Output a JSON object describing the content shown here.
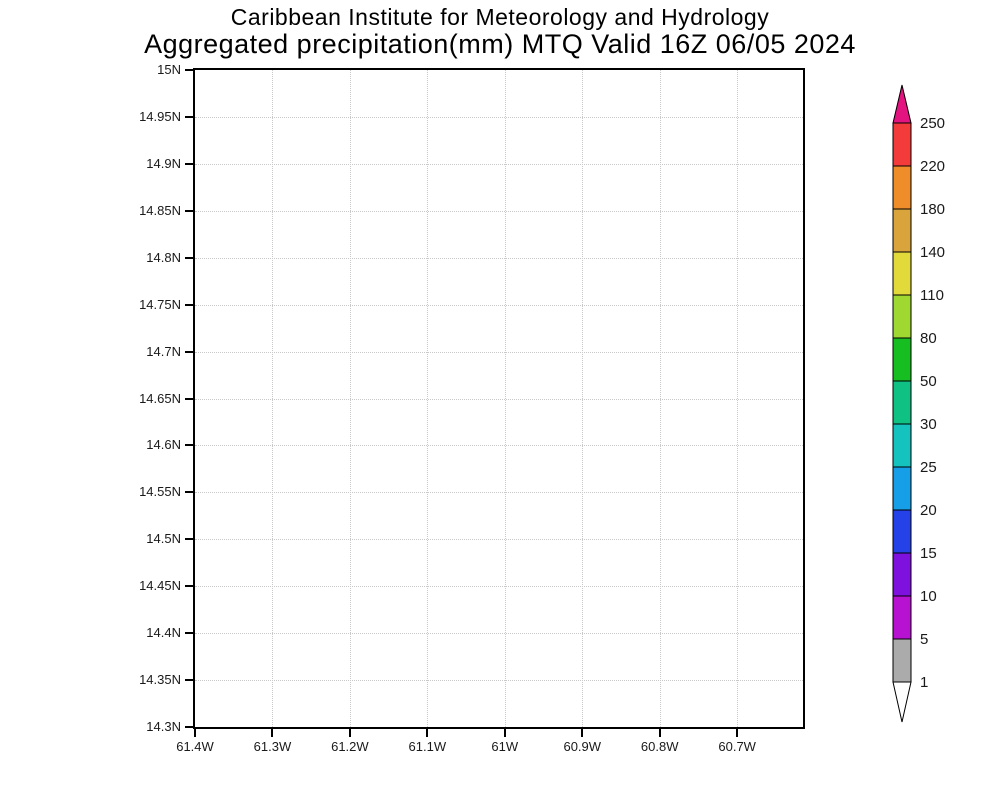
{
  "title": {
    "line1": "Caribbean Institute for Meteorology and Hydrology",
    "line2": "Aggregated precipitation(mm) MTQ Valid 16Z 06/05 2024"
  },
  "chart_data": {
    "type": "heatmap",
    "title": "Caribbean Institute for Meteorology and Hydrology",
    "subtitle": "Aggregated precipitation(mm) MTQ Valid 16Z 06/05 2024",
    "variable": "Aggregated precipitation",
    "units": "mm",
    "region": "MTQ",
    "valid_time": "16Z 06/05 2024",
    "field": "empty - no precipitation values at or above 1 mm plotted on the map",
    "grid": {
      "style": "dotted",
      "color": "#c8c8c8",
      "visible": true
    },
    "x_axis": {
      "unit": "degrees west longitude",
      "left_value": 61.4,
      "right_value": 60.615,
      "ticks": [
        {
          "label": "61.4W",
          "lon": 61.4
        },
        {
          "label": "61.3W",
          "lon": 61.3
        },
        {
          "label": "61.2W",
          "lon": 61.2
        },
        {
          "label": "61.1W",
          "lon": 61.1
        },
        {
          "label": "61W",
          "lon": 61.0
        },
        {
          "label": "60.9W",
          "lon": 60.9
        },
        {
          "label": "60.8W",
          "lon": 60.8
        },
        {
          "label": "60.7W",
          "lon": 60.7
        }
      ]
    },
    "y_axis": {
      "unit": "degrees north latitude",
      "top_value": 15.0,
      "bottom_value": 14.3,
      "ticks": [
        {
          "label": "15N",
          "lat": 15.0
        },
        {
          "label": "14.95N",
          "lat": 14.95
        },
        {
          "label": "14.9N",
          "lat": 14.9
        },
        {
          "label": "14.85N",
          "lat": 14.85
        },
        {
          "label": "14.8N",
          "lat": 14.8
        },
        {
          "label": "14.75N",
          "lat": 14.75
        },
        {
          "label": "14.7N",
          "lat": 14.7
        },
        {
          "label": "14.65N",
          "lat": 14.65
        },
        {
          "label": "14.6N",
          "lat": 14.6
        },
        {
          "label": "14.55N",
          "lat": 14.55
        },
        {
          "label": "14.5N",
          "lat": 14.5
        },
        {
          "label": "14.45N",
          "lat": 14.45
        },
        {
          "label": "14.4N",
          "lat": 14.4
        },
        {
          "label": "14.35N",
          "lat": 14.35
        },
        {
          "label": "14.3N",
          "lat": 14.3
        }
      ]
    },
    "colorbar": {
      "orientation": "vertical",
      "position": "right",
      "levels": [
        1,
        5,
        10,
        15,
        20,
        25,
        30,
        50,
        80,
        110,
        140,
        180,
        220,
        250
      ],
      "segment_colors_bottom_up": [
        "#ABABAB",
        "#B711D1",
        "#7E11DE",
        "#2542E9",
        "#169FE6",
        "#14C2BE",
        "#10C184",
        "#17BE22",
        "#A0D832",
        "#E2DA3A",
        "#D9A43C",
        "#EF8D2A",
        "#F43B3B"
      ],
      "above_max_color": "#E31380",
      "below_min_color": "#FFFFFF",
      "outline_color": "#000000",
      "label_color": "#1a1a1a"
    }
  }
}
